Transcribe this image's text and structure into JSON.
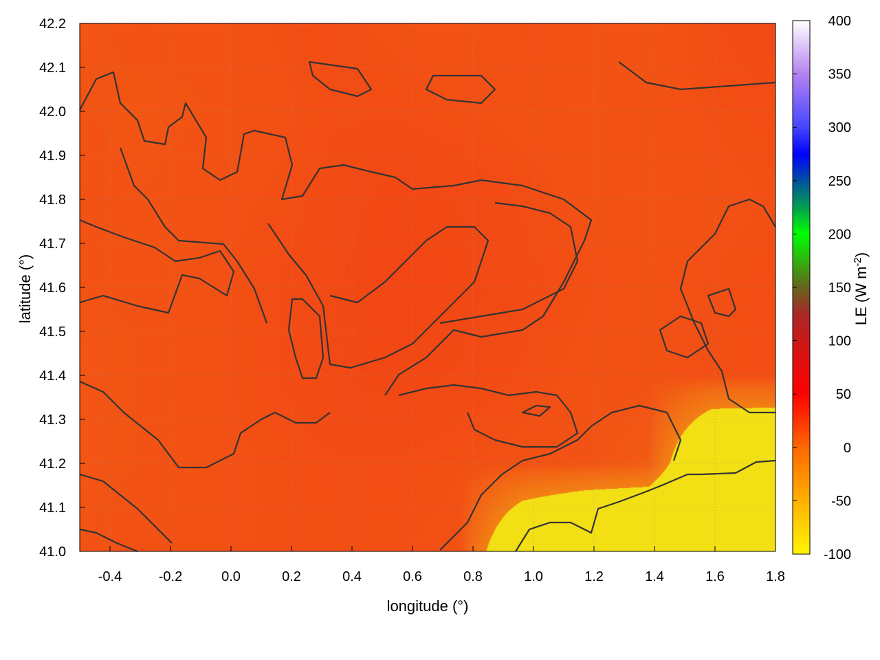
{
  "chart_data": {
    "type": "heatmap",
    "xlabel": "longitude (°)",
    "ylabel": "latitude (°)",
    "xlim": [
      -0.5,
      1.8
    ],
    "ylim": [
      41.0,
      42.2
    ],
    "xticks": [
      "-0.4",
      "-0.2",
      "0.0",
      "0.2",
      "0.4",
      "0.6",
      "0.8",
      "1.0",
      "1.2",
      "1.4",
      "1.6",
      "1.8"
    ],
    "yticks": [
      "41.0",
      "41.1",
      "41.2",
      "41.3",
      "41.4",
      "41.5",
      "41.6",
      "41.7",
      "41.8",
      "41.9",
      "42.0",
      "42.1",
      "42.2"
    ],
    "grid": true,
    "colorbar": {
      "label": "LE (W m",
      "label_sup": "-2",
      "label_close": ")",
      "range": [
        -100,
        400
      ],
      "ticks": [
        "400",
        "350",
        "300",
        "250",
        "200",
        "150",
        "100",
        "50",
        "0",
        "-50",
        "-100"
      ]
    },
    "grid_lon": [
      -0.4,
      -0.2,
      0.0,
      0.2,
      0.4,
      0.6,
      0.8,
      1.0,
      1.2,
      1.4,
      1.6,
      1.8
    ],
    "grid_lat": [
      42.2,
      42.0,
      41.8,
      41.6,
      41.4,
      41.2,
      41.0
    ],
    "values": [
      [
        8,
        10,
        9,
        11,
        12,
        10,
        9,
        11,
        10,
        9,
        12,
        14
      ],
      [
        9,
        8,
        9,
        10,
        12,
        12,
        11,
        10,
        9,
        10,
        11,
        12
      ],
      [
        10,
        9,
        10,
        11,
        13,
        15,
        14,
        12,
        10,
        9,
        10,
        11
      ],
      [
        9,
        9,
        10,
        12,
        14,
        16,
        15,
        13,
        11,
        10,
        11,
        12
      ],
      [
        8,
        9,
        10,
        12,
        14,
        15,
        14,
        12,
        10,
        10,
        11,
        12
      ],
      [
        8,
        9,
        10,
        11,
        12,
        12,
        11,
        10,
        9,
        5,
        -70,
        -75
      ],
      [
        9,
        10,
        10,
        11,
        11,
        11,
        10,
        -60,
        -85,
        -88,
        -85,
        -80
      ]
    ],
    "contour_color": "#333333"
  }
}
